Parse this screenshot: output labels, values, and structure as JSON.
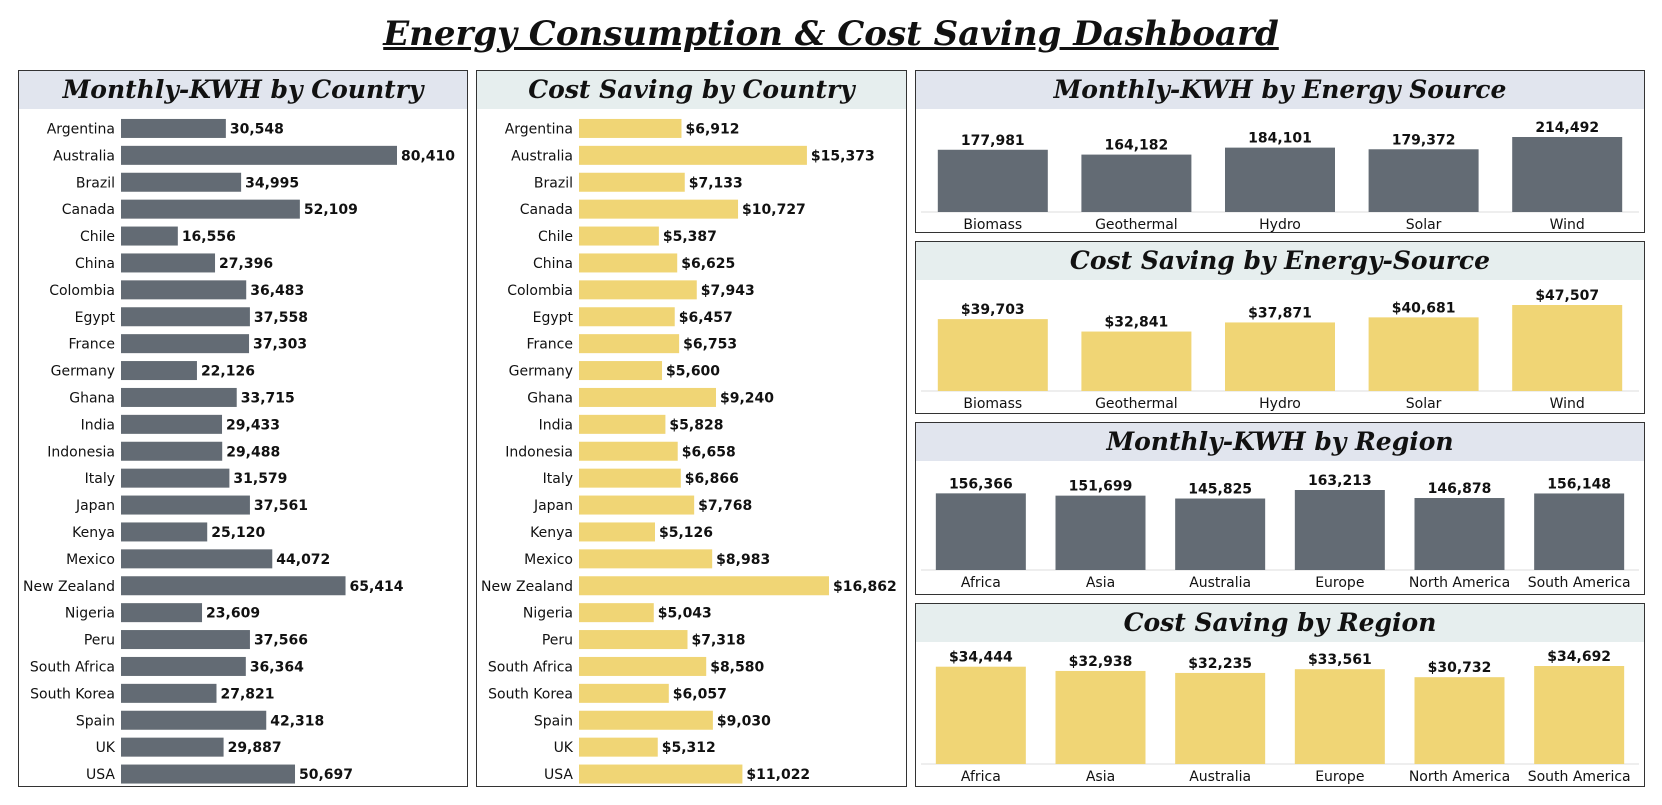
{
  "dashboard_title": "Energy Consumption & Cost Saving Dashboard",
  "colors": {
    "kwh_bar": "#636b74",
    "cost_bar": "#f0d575",
    "header_gray": "#e1e5ee",
    "header_teal": "#e6eeee"
  },
  "chart_data": [
    {
      "type": "bar",
      "orientation": "horizontal",
      "title": "Monthly-KWH by Country",
      "categories": [
        "Argentina",
        "Australia",
        "Brazil",
        "Canada",
        "Chile",
        "China",
        "Colombia",
        "Egypt",
        "France",
        "Germany",
        "Ghana",
        "India",
        "Indonesia",
        "Italy",
        "Japan",
        "Kenya",
        "Mexico",
        "New Zealand",
        "Nigeria",
        "Peru",
        "South Africa",
        "South Korea",
        "Spain",
        "UK",
        "USA"
      ],
      "values": [
        30548,
        80410,
        34995,
        52109,
        16556,
        27396,
        36483,
        37558,
        37303,
        22126,
        33715,
        29433,
        29488,
        31579,
        37561,
        25120,
        44072,
        65414,
        23609,
        37566,
        36364,
        27821,
        42318,
        29887,
        50697
      ],
      "labels": [
        "30,548",
        "80,410",
        "34,995",
        "52,109",
        "16,556",
        "27,396",
        "36,483",
        "37,558",
        "37,303",
        "22,126",
        "33,715",
        "29,433",
        "29,488",
        "31,579",
        "37,561",
        "25,120",
        "44,072",
        "65,414",
        "23,609",
        "37,566",
        "36,364",
        "27,821",
        "42,318",
        "29,887",
        "50,697"
      ]
    },
    {
      "type": "bar",
      "orientation": "horizontal",
      "title": "Cost Saving by Country",
      "categories": [
        "Argentina",
        "Australia",
        "Brazil",
        "Canada",
        "Chile",
        "China",
        "Colombia",
        "Egypt",
        "France",
        "Germany",
        "Ghana",
        "India",
        "Indonesia",
        "Italy",
        "Japan",
        "Kenya",
        "Mexico",
        "New Zealand",
        "Nigeria",
        "Peru",
        "South Africa",
        "South Korea",
        "Spain",
        "UK",
        "USA"
      ],
      "values": [
        6912,
        15373,
        7133,
        10727,
        5387,
        6625,
        7943,
        6457,
        6753,
        5600,
        9240,
        5828,
        6658,
        6866,
        7768,
        5126,
        8983,
        16862,
        5043,
        7318,
        8580,
        6057,
        9030,
        5312,
        11022
      ],
      "labels": [
        "$6,912",
        "$15,373",
        "$7,133",
        "$10,727",
        "$5,387",
        "$6,625",
        "$7,943",
        "$6,457",
        "$6,753",
        "$5,600",
        "$9,240",
        "$5,828",
        "$6,658",
        "$6,866",
        "$7,768",
        "$5,126",
        "$8,983",
        "$16,862",
        "$5,043",
        "$7,318",
        "$8,580",
        "$6,057",
        "$9,030",
        "$5,312",
        "$11,022"
      ]
    },
    {
      "type": "bar",
      "orientation": "vertical",
      "title": "Monthly-KWH by Energy Source",
      "categories": [
        "Biomass",
        "Geothermal",
        "Hydro",
        "Solar",
        "Wind"
      ],
      "values": [
        177981,
        164182,
        184101,
        179372,
        214492
      ],
      "labels": [
        "177,981",
        "164,182",
        "184,101",
        "179,372",
        "214,492"
      ]
    },
    {
      "type": "bar",
      "orientation": "vertical",
      "title": "Cost Saving by Energy-Source",
      "categories": [
        "Biomass",
        "Geothermal",
        "Hydro",
        "Solar",
        "Wind"
      ],
      "values": [
        39703,
        32841,
        37871,
        40681,
        47507
      ],
      "labels": [
        "$39,703",
        "$32,841",
        "$37,871",
        "$40,681",
        "$47,507"
      ]
    },
    {
      "type": "bar",
      "orientation": "vertical",
      "title": "Monthly-KWH by Region",
      "categories": [
        "Africa",
        "Asia",
        "Australia",
        "Europe",
        "North America",
        "South America"
      ],
      "values": [
        156366,
        151699,
        145825,
        163213,
        146878,
        156148
      ],
      "labels": [
        "156,366",
        "151,699",
        "145,825",
        "163,213",
        "146,878",
        "156,148"
      ]
    },
    {
      "type": "bar",
      "orientation": "vertical",
      "title": "Cost Saving by Region",
      "categories": [
        "Africa",
        "Asia",
        "Australia",
        "Europe",
        "North America",
        "South America"
      ],
      "values": [
        34444,
        32938,
        32235,
        33561,
        30732,
        34692
      ],
      "labels": [
        "$34,444",
        "$32,938",
        "$32,235",
        "$33,561",
        "$30,732",
        "$34,692"
      ]
    }
  ]
}
